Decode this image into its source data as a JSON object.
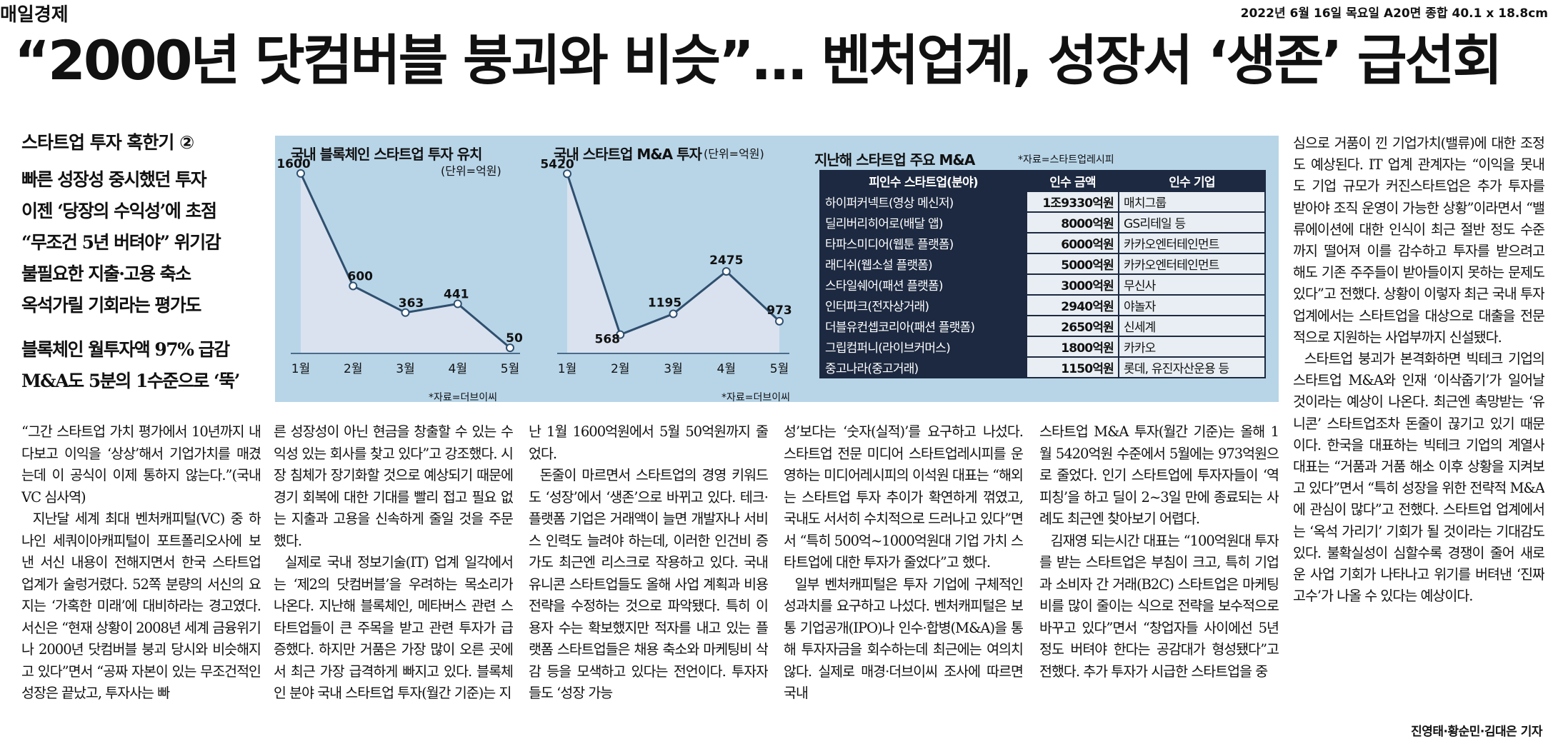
{
  "masthead": {
    "paper": "매일경제",
    "date_line": "2022년 6월 16일 목요일 A20면 종합 40.1 x 18.8cm"
  },
  "headline": "“2000년 닷컴버블 붕괴와 비슷”… 벤처업계, 성장서 ‘생존’ 급선회",
  "sidebar": {
    "series": "스타트업 투자 혹한기 ②",
    "subheads": [
      "빠른 성장성 중시했던 투자",
      "이젠 ‘당장의 수익성’에 초점",
      "“무조건 5년 버텨야” 위기감",
      "불필요한 지출·고용 축소",
      "옥석가릴 기회라는 평가도"
    ],
    "subheads2": [
      "블록체인 월투자액 97% 급감",
      "M&A도 5분의 1수준으로 ‘뚝’"
    ]
  },
  "graphic": {
    "charts": [
      {
        "title": "국내 블록체인 스타트업 투자 유치",
        "unit": "(단위=억원)",
        "source": "*자료=더브이씨"
      },
      {
        "title": "국내 스타트업 M&A 투자",
        "unit": "(단위=억원)",
        "source": "*자료=더브이씨"
      }
    ],
    "table": {
      "title": "지난해 스타트업 주요 M&A",
      "source": "*자료=스타트업레시피",
      "headers": [
        "피인수 스타트업(분야)",
        "인수 금액",
        "인수 기업"
      ],
      "rows": [
        [
          "하이퍼커넥트(영상 메신저)",
          "1조9330억원",
          "매치그룹"
        ],
        [
          "딜리버리히어로(배달 앱)",
          "8000억원",
          "GS리테일 등"
        ],
        [
          "타파스미디어(웹툰 플랫폼)",
          "6000억원",
          "카카오엔터테인먼트"
        ],
        [
          "래디쉬(웹소설 플랫폼)",
          "5000억원",
          "카카오엔터테인먼트"
        ],
        [
          "스타일쉐어(패션 플랫폼)",
          "3000억원",
          "무신사"
        ],
        [
          "인터파크(전자상거래)",
          "2940억원",
          "야놀자"
        ],
        [
          "더블유컨셉코리아(패션 플랫폼)",
          "2650억원",
          "신세계"
        ],
        [
          "그립컴퍼니(라이브커머스)",
          "1800억원",
          "카카오"
        ],
        [
          "중고나라(중고거래)",
          "1150억원",
          "롯데, 유진자산운용 등"
        ]
      ]
    }
  },
  "chart_data": [
    {
      "type": "area",
      "title": "국내 블록체인 스타트업 투자 유치",
      "unit": "(단위=억원)",
      "categories": [
        "1월",
        "2월",
        "3월",
        "4월",
        "5월"
      ],
      "values": [
        1600,
        600,
        363,
        441,
        50
      ],
      "value_labels": [
        "1600",
        "600",
        "363",
        "441",
        "50"
      ],
      "ylim": [
        0,
        1650
      ],
      "grid": false
    },
    {
      "type": "area",
      "title": "국내 스타트업 M&A 투자",
      "unit": "(단위=억원)",
      "categories": [
        "1월",
        "2월",
        "3월",
        "4월",
        "5월"
      ],
      "values": [
        5420,
        568,
        1195,
        2475,
        973
      ],
      "value_labels": [
        "5420",
        "568",
        "1195",
        "2475",
        "973"
      ],
      "ylim": [
        0,
        5600
      ],
      "grid": false
    }
  ],
  "body": {
    "col1": [
      "“그간 스타트업 가치 평가에서 10년까지 내다보고 이익을 ‘상상’해서 기업가치를 매겼는데 이 공식이 이제 통하지 않는다.”(국내 VC 심사역)",
      "지난달 세계 최대 벤처캐피털(VC) 중 하나인 세쿼이아캐피털이 포트폴리오사에 보낸 서신 내용이 전해지면서 한국 스타트업 업계가 술렁거렸다. 52쪽 분량의 서신의 요지는 ‘가혹한 미래’에 대비하라는 경고였다. 서신은 “현재 상황이 2008년 세계 금융위기나 2000년 닷컴버블 붕괴 당시와 비슷해지고 있다”면서 “공짜 자본이 있는 무조건적인 성장은 끝났고, 투자사는 빠"
    ],
    "col2": [
      "른 성장성이 아닌 현금을 창출할 수 있는 수익성 있는 회사를 찾고 있다”고 강조했다. 시장 침체가 장기화할 것으로 예상되기 때문에 경기 회복에 대한 기대를 빨리 접고 필요 없는 지출과 고용을 신속하게 줄일 것을 주문했다.",
      "실제로 국내 정보기술(IT) 업계 일각에서는 ‘제2의 닷컴버블’을 우려하는 목소리가 나온다. 지난해 블록체인, 메타버스 관련 스타트업들이 큰 주목을 받고 관련 투자가 급증했다. 하지만 거품은 가장 많이 오른 곳에서 최근 가장 급격하게 빠지고 있다. 블록체인 분야 국내 스타트업 투자(월간 기준)는 지"
    ],
    "col3": [
      "난 1월 1600억원에서 5월 50억원까지 줄었다.",
      "돈줄이 마르면서 스타트업의 경영 키워드도 ‘성장’에서 ‘생존’으로 바뀌고 있다. 테크·플랫폼 기업은 거래액이 늘면 개발자나 서비스 인력도 늘려야 하는데, 이러한 인건비 증가도 최근엔 리스크로 작용하고 있다. 국내 유니콘 스타트업들도 올해 사업 계획과 비용 전략을 수정하는 것으로 파악됐다. 특히 이용자 수는 확보했지만 적자를 내고 있는 플랫폼 스타트업들은 채용 축소와 마케팅비 삭감 등을 모색하고 있다는 전언이다. 투자자들도 ‘성장 가능"
    ],
    "col4": [
      "성’보다는 ‘숫자(실적)’를 요구하고 나섰다. 스타트업 전문 미디어 스타트업레시피를 운영하는 미디어레시피의 이석원 대표는 “해외는 스타트업 투자 추이가 확연하게 꺾였고, 국내도 서서히 수치적으로 드러나고 있다”면서 “특히 500억~1000억원대 기업 가치 스타트업에 대한 투자가 줄었다”고 했다.",
      "일부 벤처캐피털은 투자 기업에 구체적인 성과치를 요구하고 나섰다. 벤처캐피털은 보통 기업공개(IPO)나 인수·합병(M&A)을 통해 투자자금을 회수하는데 최근에는 여의치 않다. 실제로 매경·더브이씨 조사에 따르면 국내"
    ],
    "col5": [
      "스타트업 M&A 투자(월간 기준)는 올해 1월 5420억원 수준에서 5월에는 973억원으로 줄었다. 인기 스타트업에 투자자들이 ‘역피칭’을 하고 딜이 2~3일 만에 종료되는 사례도 최근엔 찾아보기 어렵다.",
      "김재영 되는시간 대표는 “100억원대 투자를 받는 스타트업은 부침이 크고, 특히 기업과 소비자 간 거래(B2C) 스타트업은 마케팅비를 많이 줄이는 식으로 전략을 보수적으로 바꾸고 있다”면서 “창업자들 사이에선 5년 정도 버텨야 한다는 공감대가 형성됐다”고 전했다. 추가 투자가 시급한 스타트업을 중"
    ],
    "col6": [
      "심으로 거품이 낀 기업가치(밸류)에 대한 조정도 예상된다. IT 업계 관계자는 “이익을 못내도 기업 규모가 커진스타트업은 추가 투자를 받아야 조직 운영이 가능한 상황”이라면서 “밸류에이션에 대한 인식이 최근 절반 정도 수준까지 떨어져 이를 감수하고 투자를 받으려고 해도 기존 주주들이 받아들이지 못하는 문제도 있다”고 전했다. 상황이 이렇자 최근 국내 투자 업계에서는 스타트업을 대상으로 대출을 전문적으로 지원하는 사업부까지 신설됐다.",
      "스타트업 붕괴가 본격화하면 빅테크 기업의 스타트업 M&A와 인재 ‘이삭줍기’가 일어날 것이라는 예상이 나온다. 최근엔 촉망받는 ‘유니콘’ 스타트업조차 돈줄이 끊기고 있기 때문이다. 한국을 대표하는 빅테크 기업의 계열사 대표는 “거품과 거품 해소 이후 상황을 지켜보고 있다”면서 “특히 성장을 위한 전략적 M&A에 관심이 많다”고 전했다. 스타트업 업계에서는 ‘옥석 가리기’ 기회가 될 것이라는 기대감도 있다. 불확실성이 심할수록 경쟁이 줄어 새로운 사업 기회가 나타나고 위기를 버텨낸 ‘진짜 고수’가 나올 수 있다는 예상이다."
    ],
    "byline": "진영태·황순민·김대은 기자"
  }
}
